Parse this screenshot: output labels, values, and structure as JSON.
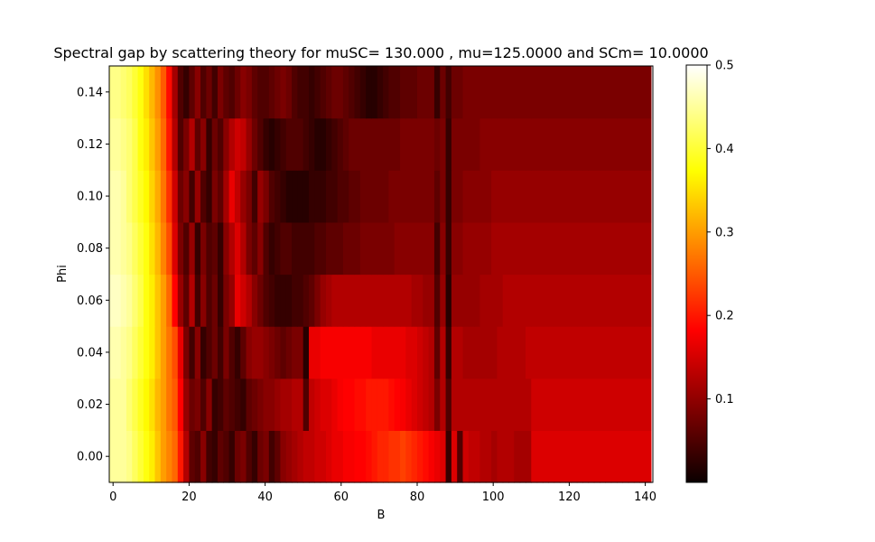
{
  "chart_data": {
    "type": "heatmap",
    "title": "Spectral gap by scattering theory for muSC= 130.000 , mu=125.0000 and SCm= 10.0000",
    "xlabel": "B",
    "ylabel": "Phi",
    "xlim": [
      -1,
      142
    ],
    "ylim": [
      -0.01,
      0.15
    ],
    "x_ticks": [
      0,
      20,
      40,
      60,
      80,
      100,
      120,
      140
    ],
    "x_tick_labels": [
      "0",
      "20",
      "40",
      "60",
      "80",
      "100",
      "120",
      "140"
    ],
    "y_ticks": [
      0.0,
      0.02,
      0.04,
      0.06,
      0.08,
      0.1,
      0.12,
      0.14
    ],
    "y_tick_labels": [
      "0.00",
      "0.02",
      "0.04",
      "0.06",
      "0.08",
      "0.10",
      "0.12",
      "0.14"
    ],
    "colormap": "hot",
    "colorbar": {
      "range": [
        0.0,
        0.5
      ],
      "ticks": [
        0.1,
        0.2,
        0.3,
        0.4,
        0.5
      ],
      "tick_labels": [
        "0.1",
        "0.2",
        "0.3",
        "0.4",
        "0.5"
      ]
    },
    "phi": [
      0.0,
      0.02,
      0.04,
      0.06,
      0.08,
      0.1,
      0.12,
      0.14
    ],
    "b_bin_width": 1.5,
    "b_range": [
      -1,
      142
    ],
    "values": [
      [
        0.45,
        0.45,
        0.45,
        0.44,
        0.42,
        0.4,
        0.38,
        0.36,
        0.33,
        0.3,
        0.28,
        0.26,
        0.2,
        0.12,
        0.06,
        0.05,
        0.09,
        0.04,
        0.03,
        0.06,
        0.05,
        0.03,
        0.07,
        0.08,
        0.05,
        0.03,
        0.07,
        0.08,
        0.04,
        0.06,
        0.09,
        0.1,
        0.11,
        0.12,
        0.13,
        0.13,
        0.14,
        0.14,
        0.15,
        0.16,
        0.16,
        0.17,
        0.17,
        0.18,
        0.18,
        0.19,
        0.2,
        0.21,
        0.21,
        0.22,
        0.22,
        0.23,
        0.22,
        0.21,
        0.2,
        0.19,
        0.17,
        0.16,
        0.15,
        0.03,
        0.15,
        0.05,
        0.14,
        0.13,
        0.13,
        0.12,
        0.12,
        0.11,
        0.12,
        0.12,
        0.12,
        0.11,
        0.11,
        0.11,
        0.15,
        0.15,
        0.15,
        0.15,
        0.15,
        0.15,
        0.15,
        0.15,
        0.15,
        0.15,
        0.15,
        0.15,
        0.15,
        0.15,
        0.15,
        0.15,
        0.15,
        0.15,
        0.15,
        0.15,
        0.15
      ],
      [
        0.45,
        0.45,
        0.45,
        0.43,
        0.41,
        0.39,
        0.37,
        0.35,
        0.32,
        0.3,
        0.27,
        0.25,
        0.18,
        0.1,
        0.07,
        0.08,
        0.05,
        0.09,
        0.03,
        0.04,
        0.06,
        0.05,
        0.04,
        0.03,
        0.06,
        0.07,
        0.08,
        0.09,
        0.09,
        0.1,
        0.11,
        0.11,
        0.12,
        0.12,
        0.05,
        0.13,
        0.14,
        0.15,
        0.15,
        0.16,
        0.17,
        0.18,
        0.18,
        0.19,
        0.19,
        0.2,
        0.2,
        0.2,
        0.2,
        0.19,
        0.18,
        0.17,
        0.16,
        0.15,
        0.14,
        0.13,
        0.12,
        0.08,
        0.12,
        0.05,
        0.12,
        0.12,
        0.12,
        0.12,
        0.12,
        0.12,
        0.12,
        0.12,
        0.12,
        0.12,
        0.12,
        0.12,
        0.12,
        0.12,
        0.14,
        0.14,
        0.14,
        0.14,
        0.14,
        0.14,
        0.14,
        0.14,
        0.14,
        0.14,
        0.14,
        0.14,
        0.14,
        0.14,
        0.14,
        0.14,
        0.14,
        0.14,
        0.14,
        0.14,
        0.14
      ],
      [
        0.46,
        0.46,
        0.45,
        0.44,
        0.42,
        0.4,
        0.38,
        0.36,
        0.33,
        0.3,
        0.27,
        0.24,
        0.16,
        0.08,
        0.04,
        0.09,
        0.03,
        0.05,
        0.07,
        0.04,
        0.08,
        0.05,
        0.03,
        0.06,
        0.09,
        0.1,
        0.1,
        0.09,
        0.08,
        0.07,
        0.06,
        0.07,
        0.08,
        0.08,
        0.02,
        0.16,
        0.16,
        0.17,
        0.17,
        0.17,
        0.17,
        0.17,
        0.17,
        0.17,
        0.17,
        0.17,
        0.16,
        0.16,
        0.16,
        0.16,
        0.16,
        0.16,
        0.15,
        0.15,
        0.14,
        0.13,
        0.12,
        0.06,
        0.12,
        0.03,
        0.12,
        0.12,
        0.11,
        0.11,
        0.11,
        0.11,
        0.11,
        0.11,
        0.12,
        0.12,
        0.12,
        0.12,
        0.12,
        0.13,
        0.13,
        0.13,
        0.13,
        0.13,
        0.13,
        0.13,
        0.13,
        0.13,
        0.13,
        0.13,
        0.13,
        0.13,
        0.13,
        0.13,
        0.13,
        0.13,
        0.13,
        0.13,
        0.13,
        0.13,
        0.13
      ],
      [
        0.47,
        0.47,
        0.46,
        0.45,
        0.43,
        0.41,
        0.38,
        0.36,
        0.33,
        0.3,
        0.26,
        0.18,
        0.1,
        0.06,
        0.12,
        0.04,
        0.09,
        0.05,
        0.07,
        0.03,
        0.08,
        0.1,
        0.16,
        0.14,
        0.12,
        0.09,
        0.07,
        0.05,
        0.04,
        0.03,
        0.03,
        0.03,
        0.04,
        0.04,
        0.05,
        0.06,
        0.08,
        0.1,
        0.11,
        0.12,
        0.12,
        0.12,
        0.12,
        0.12,
        0.12,
        0.12,
        0.12,
        0.12,
        0.12,
        0.12,
        0.12,
        0.12,
        0.12,
        0.11,
        0.11,
        0.1,
        0.1,
        0.05,
        0.1,
        0.02,
        0.1,
        0.1,
        0.1,
        0.1,
        0.1,
        0.11,
        0.11,
        0.11,
        0.11,
        0.12,
        0.12,
        0.12,
        0.12,
        0.12,
        0.12,
        0.12,
        0.12,
        0.12,
        0.12,
        0.12,
        0.12,
        0.12,
        0.12,
        0.12,
        0.12,
        0.12,
        0.12,
        0.12,
        0.12,
        0.12,
        0.12,
        0.12,
        0.12,
        0.12,
        0.12
      ],
      [
        0.46,
        0.46,
        0.45,
        0.44,
        0.42,
        0.4,
        0.38,
        0.35,
        0.32,
        0.28,
        0.24,
        0.15,
        0.08,
        0.05,
        0.1,
        0.03,
        0.08,
        0.05,
        0.06,
        0.03,
        0.09,
        0.12,
        0.15,
        0.12,
        0.08,
        0.06,
        0.09,
        0.05,
        0.03,
        0.04,
        0.05,
        0.05,
        0.04,
        0.04,
        0.04,
        0.04,
        0.05,
        0.05,
        0.06,
        0.06,
        0.06,
        0.07,
        0.07,
        0.07,
        0.08,
        0.08,
        0.08,
        0.08,
        0.08,
        0.08,
        0.09,
        0.09,
        0.09,
        0.09,
        0.09,
        0.09,
        0.09,
        0.04,
        0.09,
        0.03,
        0.09,
        0.09,
        0.1,
        0.1,
        0.1,
        0.1,
        0.1,
        0.11,
        0.11,
        0.11,
        0.11,
        0.11,
        0.11,
        0.11,
        0.11,
        0.11,
        0.11,
        0.11,
        0.11,
        0.11,
        0.11,
        0.11,
        0.11,
        0.11,
        0.11,
        0.11,
        0.11,
        0.11,
        0.11,
        0.11,
        0.11,
        0.11,
        0.11,
        0.11,
        0.11
      ],
      [
        0.46,
        0.46,
        0.45,
        0.43,
        0.41,
        0.39,
        0.37,
        0.34,
        0.31,
        0.27,
        0.22,
        0.14,
        0.07,
        0.09,
        0.04,
        0.1,
        0.05,
        0.03,
        0.08,
        0.06,
        0.11,
        0.16,
        0.13,
        0.1,
        0.08,
        0.04,
        0.1,
        0.08,
        0.05,
        0.04,
        0.03,
        0.02,
        0.02,
        0.02,
        0.02,
        0.03,
        0.03,
        0.03,
        0.04,
        0.04,
        0.05,
        0.05,
        0.06,
        0.06,
        0.07,
        0.07,
        0.07,
        0.07,
        0.07,
        0.08,
        0.08,
        0.08,
        0.08,
        0.08,
        0.08,
        0.08,
        0.08,
        0.06,
        0.08,
        0.03,
        0.08,
        0.08,
        0.09,
        0.09,
        0.09,
        0.09,
        0.09,
        0.1,
        0.1,
        0.1,
        0.1,
        0.1,
        0.1,
        0.1,
        0.1,
        0.1,
        0.1,
        0.1,
        0.1,
        0.1,
        0.1,
        0.1,
        0.1,
        0.1,
        0.1,
        0.1,
        0.1,
        0.1,
        0.1,
        0.1,
        0.1,
        0.1,
        0.1,
        0.1,
        0.1
      ],
      [
        0.45,
        0.45,
        0.44,
        0.43,
        0.41,
        0.38,
        0.36,
        0.33,
        0.3,
        0.26,
        0.2,
        0.12,
        0.05,
        0.08,
        0.12,
        0.06,
        0.09,
        0.03,
        0.07,
        0.05,
        0.09,
        0.12,
        0.14,
        0.13,
        0.1,
        0.07,
        0.05,
        0.03,
        0.02,
        0.03,
        0.04,
        0.05,
        0.05,
        0.05,
        0.04,
        0.03,
        0.02,
        0.02,
        0.03,
        0.04,
        0.05,
        0.06,
        0.07,
        0.07,
        0.07,
        0.07,
        0.07,
        0.07,
        0.07,
        0.07,
        0.07,
        0.08,
        0.08,
        0.08,
        0.08,
        0.08,
        0.08,
        0.07,
        0.08,
        0.03,
        0.08,
        0.08,
        0.08,
        0.08,
        0.08,
        0.09,
        0.09,
        0.09,
        0.09,
        0.09,
        0.09,
        0.09,
        0.09,
        0.09,
        0.09,
        0.09,
        0.09,
        0.09,
        0.09,
        0.09,
        0.09,
        0.09,
        0.09,
        0.09,
        0.09,
        0.09,
        0.09,
        0.09,
        0.09,
        0.09,
        0.09,
        0.09,
        0.09,
        0.09,
        0.09
      ],
      [
        0.44,
        0.44,
        0.43,
        0.42,
        0.4,
        0.38,
        0.35,
        0.32,
        0.29,
        0.25,
        0.19,
        0.11,
        0.05,
        0.03,
        0.06,
        0.09,
        0.05,
        0.07,
        0.04,
        0.08,
        0.06,
        0.05,
        0.07,
        0.09,
        0.08,
        0.06,
        0.05,
        0.05,
        0.06,
        0.07,
        0.08,
        0.07,
        0.05,
        0.04,
        0.04,
        0.03,
        0.04,
        0.05,
        0.06,
        0.07,
        0.07,
        0.06,
        0.05,
        0.04,
        0.03,
        0.02,
        0.02,
        0.03,
        0.04,
        0.05,
        0.05,
        0.06,
        0.06,
        0.06,
        0.07,
        0.07,
        0.07,
        0.03,
        0.07,
        0.04,
        0.07,
        0.07,
        0.08,
        0.08,
        0.08,
        0.08,
        0.08,
        0.08,
        0.08,
        0.08,
        0.08,
        0.08,
        0.08,
        0.08,
        0.08,
        0.08,
        0.08,
        0.08,
        0.08,
        0.08,
        0.08,
        0.08,
        0.08,
        0.08,
        0.08,
        0.08,
        0.08,
        0.08,
        0.08,
        0.08,
        0.08,
        0.08,
        0.08,
        0.08,
        0.08
      ]
    ]
  }
}
